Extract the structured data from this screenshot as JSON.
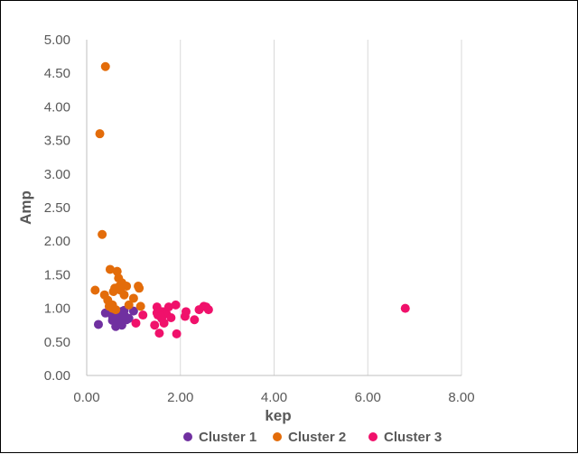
{
  "chart_data": {
    "type": "scatter",
    "xlabel": "kep",
    "ylabel": "Amp",
    "xlim": [
      0,
      8
    ],
    "ylim": [
      0,
      5
    ],
    "x_ticks": [
      "0.00",
      "2.00",
      "4.00",
      "6.00",
      "8.00"
    ],
    "y_ticks": [
      "0.00",
      "0.50",
      "1.00",
      "1.50",
      "2.00",
      "2.50",
      "3.00",
      "3.50",
      "4.00",
      "4.50",
      "5.00"
    ],
    "grid": "vertical",
    "legend_position": "bottom",
    "series": [
      {
        "name": "Cluster 1",
        "color": "#7030a0",
        "points": [
          [
            0.25,
            0.76
          ],
          [
            0.4,
            0.93
          ],
          [
            0.5,
            0.95
          ],
          [
            0.55,
            0.82
          ],
          [
            0.6,
            0.85
          ],
          [
            0.62,
            0.73
          ],
          [
            0.65,
            0.9
          ],
          [
            0.7,
            0.8
          ],
          [
            0.72,
            0.95
          ],
          [
            0.75,
            0.75
          ],
          [
            0.78,
            0.85
          ],
          [
            0.8,
            0.97
          ],
          [
            0.85,
            0.83
          ],
          [
            0.9,
            0.85
          ],
          [
            1.0,
            0.96
          ],
          [
            0.6,
            0.98
          ],
          [
            0.55,
            0.88
          ],
          [
            0.68,
            0.92
          ],
          [
            0.73,
            0.78
          ],
          [
            0.82,
            0.88
          ]
        ]
      },
      {
        "name": "Cluster 2",
        "color": "#e36c0a",
        "points": [
          [
            0.4,
            4.6
          ],
          [
            0.28,
            3.6
          ],
          [
            0.33,
            2.1
          ],
          [
            0.18,
            1.27
          ],
          [
            0.38,
            1.2
          ],
          [
            0.45,
            1.12
          ],
          [
            0.5,
            1.58
          ],
          [
            0.55,
            1.05
          ],
          [
            0.57,
            1.25
          ],
          [
            0.6,
            1.3
          ],
          [
            0.62,
            0.98
          ],
          [
            0.65,
            1.55
          ],
          [
            0.68,
            1.45
          ],
          [
            0.7,
            1.33
          ],
          [
            0.72,
            1.27
          ],
          [
            0.8,
            1.2
          ],
          [
            0.85,
            1.33
          ],
          [
            0.9,
            1.05
          ],
          [
            1.0,
            1.15
          ],
          [
            1.1,
            1.33
          ],
          [
            1.12,
            1.3
          ],
          [
            1.15,
            1.03
          ],
          [
            0.55,
            1.0
          ],
          [
            0.75,
            1.38
          ],
          [
            0.48,
            1.03
          ]
        ]
      },
      {
        "name": "Cluster 3",
        "color": "#f0116b",
        "points": [
          [
            1.05,
            0.78
          ],
          [
            1.2,
            0.9
          ],
          [
            1.45,
            0.75
          ],
          [
            1.5,
            1.02
          ],
          [
            1.52,
            0.9
          ],
          [
            1.55,
            0.63
          ],
          [
            1.6,
            0.85
          ],
          [
            1.62,
            0.95
          ],
          [
            1.65,
            0.78
          ],
          [
            1.7,
            0.92
          ],
          [
            1.75,
            1.02
          ],
          [
            1.8,
            0.86
          ],
          [
            1.9,
            1.05
          ],
          [
            1.92,
            0.62
          ],
          [
            2.1,
            0.88
          ],
          [
            2.12,
            0.95
          ],
          [
            2.3,
            0.83
          ],
          [
            2.4,
            0.98
          ],
          [
            2.5,
            1.03
          ],
          [
            2.55,
            1.02
          ],
          [
            2.6,
            0.98
          ],
          [
            6.8,
            1.0
          ],
          [
            1.5,
            0.93
          ],
          [
            1.58,
            0.88
          ]
        ]
      }
    ]
  }
}
